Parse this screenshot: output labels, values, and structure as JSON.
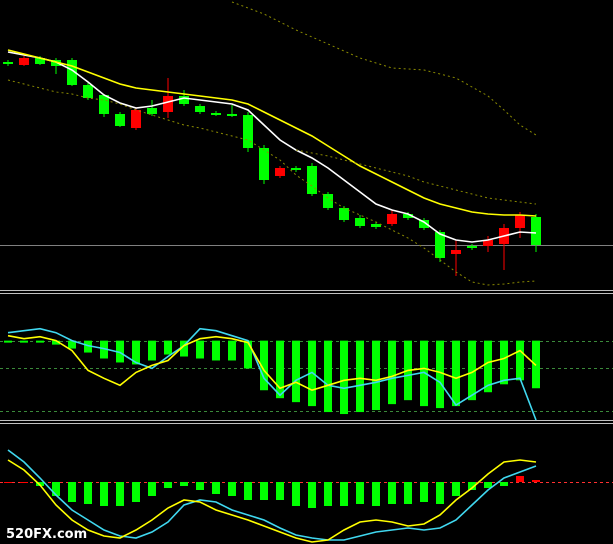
{
  "watermark": "520FX.com",
  "chart_data": [
    {
      "type": "candlestick",
      "categories": [
        null,
        null,
        null,
        null,
        null,
        null,
        null,
        null,
        null,
        null,
        null,
        null,
        null,
        null,
        null,
        null,
        null,
        null,
        null,
        null,
        null,
        null,
        null,
        null,
        null,
        null,
        null,
        null,
        null,
        null,
        null,
        null,
        null,
        null
      ],
      "open": [
        228,
        225,
        232,
        230,
        230,
        205,
        195,
        176,
        162,
        182,
        178,
        194,
        184,
        177,
        176,
        175,
        142,
        114,
        122,
        124,
        96,
        82,
        72,
        66,
        66,
        76,
        70,
        58,
        36,
        44,
        44,
        46,
        62,
        73
      ],
      "high": [
        230,
        234,
        234,
        232,
        232,
        207,
        196,
        178,
        182,
        190,
        212,
        200,
        186,
        179,
        185,
        178,
        145,
        124,
        124,
        127,
        98,
        84,
        75,
        68,
        80,
        78,
        72,
        60,
        50,
        46,
        54,
        66,
        78,
        76
      ],
      "low": [
        224,
        224,
        225,
        216,
        204,
        190,
        173,
        163,
        160,
        174,
        172,
        184,
        176,
        174,
        173,
        138,
        106,
        112,
        118,
        94,
        80,
        68,
        62,
        61,
        64,
        70,
        60,
        28,
        14,
        40,
        38,
        20,
        52,
        38
      ],
      "close": [
        226,
        232,
        226,
        224,
        205,
        192,
        176,
        164,
        180,
        176,
        194,
        186,
        178,
        175,
        175,
        142,
        110,
        122,
        120,
        96,
        82,
        70,
        64,
        63,
        76,
        72,
        62,
        32,
        40,
        42,
        50,
        62,
        75,
        45
      ],
      "up_color": "#ff0000",
      "down_color": "#00ff00",
      "lines": [
        {
          "color": "#ffffff",
          "values": [
            238,
            235,
            232,
            228,
            220,
            208,
            195,
            187,
            182,
            184,
            188,
            192,
            190,
            188,
            186,
            180,
            165,
            150,
            140,
            132,
            122,
            110,
            98,
            86,
            80,
            76,
            68,
            56,
            50,
            48,
            50,
            54,
            58,
            57
          ]
        },
        {
          "color": "#ffff00",
          "values": [
            240,
            236,
            232,
            228,
            224,
            218,
            212,
            206,
            202,
            200,
            198,
            196,
            194,
            192,
            190,
            186,
            178,
            170,
            162,
            154,
            144,
            134,
            124,
            116,
            108,
            100,
            92,
            86,
            82,
            78,
            76,
            75,
            75,
            74
          ]
        },
        {
          "color": "#8a8a00",
          "dashed": true,
          "values": [
            null,
            null,
            null,
            null,
            null,
            null,
            null,
            null,
            null,
            null,
            null,
            null,
            null,
            null,
            288,
            282,
            276,
            268,
            260,
            253,
            246,
            239,
            232,
            227,
            222,
            221,
            220,
            216,
            212,
            203,
            194,
            180,
            165,
            155
          ]
        },
        {
          "color": "#8a8a00",
          "dashed": true,
          "values": [
            null,
            null,
            null,
            null,
            null,
            null,
            null,
            null,
            null,
            null,
            null,
            null,
            null,
            null,
            null,
            null,
            null,
            null,
            140,
            137,
            134,
            130,
            126,
            122,
            118,
            114,
            108,
            104,
            100,
            96,
            92,
            90,
            88,
            86
          ]
        },
        {
          "color": "#8a8a00",
          "dashed": true,
          "values": [
            210,
            206,
            202,
            198,
            196,
            192,
            190,
            186,
            180,
            175,
            170,
            165,
            162,
            158,
            154,
            150,
            140,
            130,
            115,
            104,
            92,
            82,
            75,
            68,
            60,
            52,
            42,
            30,
            18,
            8,
            5,
            6,
            8,
            9
          ]
        }
      ],
      "hlines": [
        45
      ],
      "hline_color": "#808080",
      "hline_dashed": false,
      "ylim": [
        0,
        290
      ]
    },
    {
      "type": "bar",
      "values": [
        -2,
        -2,
        -2,
        -4,
        -8,
        -12,
        -18,
        -22,
        -24,
        -20,
        -14,
        -16,
        -18,
        -20,
        -20,
        -28,
        -50,
        -58,
        -62,
        -66,
        -72,
        -74,
        -72,
        -70,
        -64,
        -60,
        -66,
        -68,
        -66,
        -60,
        -52,
        -44,
        -40,
        -48
      ],
      "pos_color": "#ff0000",
      "neg_color": "#00ff00",
      "lines": [
        {
          "color": "#40d8f0",
          "values": [
            8,
            10,
            12,
            8,
            0,
            -5,
            -8,
            -12,
            -22,
            -28,
            -16,
            -5,
            12,
            10,
            5,
            0,
            -38,
            -55,
            -40,
            -32,
            -45,
            -48,
            -45,
            -42,
            -38,
            -35,
            -32,
            -42,
            -65,
            -55,
            -45,
            -40,
            -38,
            -80
          ]
        },
        {
          "color": "#ffff00",
          "values": [
            5,
            2,
            4,
            0,
            -10,
            -30,
            -38,
            -45,
            -32,
            -25,
            -20,
            -5,
            2,
            4,
            2,
            -2,
            -30,
            -48,
            -42,
            -50,
            -45,
            -40,
            -38,
            -40,
            -36,
            -30,
            -28,
            -32,
            -38,
            -32,
            -22,
            -18,
            -10,
            -25
          ]
        }
      ],
      "hlines": [
        0,
        -28,
        -71
      ],
      "hline_color": "#3a8a3a",
      "hline_dashed": true,
      "ylim": [
        -80,
        45
      ]
    },
    {
      "type": "bar",
      "values": [
        0,
        0,
        -4,
        -14,
        -20,
        -22,
        -24,
        -24,
        -20,
        -14,
        -6,
        -4,
        -8,
        -12,
        -14,
        -18,
        -18,
        -18,
        -24,
        -26,
        -24,
        -24,
        -22,
        -24,
        -22,
        -22,
        -20,
        -22,
        -14,
        -8,
        -6,
        -4,
        6,
        2
      ],
      "pos_color": "#ff0000",
      "neg_color": "#00ff00",
      "lines": [
        {
          "color": "#40d8f0",
          "values": [
            32,
            20,
            4,
            -13,
            -28,
            -38,
            -48,
            -54,
            -56,
            -50,
            -40,
            -23,
            -18,
            -20,
            -28,
            -33,
            -38,
            -46,
            -53,
            -56,
            -58,
            -58,
            -54,
            -50,
            -48,
            -46,
            -48,
            -46,
            -38,
            -23,
            -8,
            4,
            10,
            16
          ]
        },
        {
          "color": "#ffff00",
          "values": [
            22,
            12,
            -3,
            -23,
            -38,
            -48,
            -54,
            -56,
            -48,
            -38,
            -26,
            -18,
            -20,
            -28,
            -33,
            -38,
            -44,
            -50,
            -56,
            -60,
            -58,
            -48,
            -40,
            -38,
            -40,
            -44,
            -42,
            -33,
            -18,
            -6,
            8,
            20,
            22,
            20
          ]
        }
      ],
      "hlines": [
        0
      ],
      "hline_color": "#ff3030",
      "hline_dashed": true,
      "ylim": [
        -62,
        57
      ]
    }
  ]
}
